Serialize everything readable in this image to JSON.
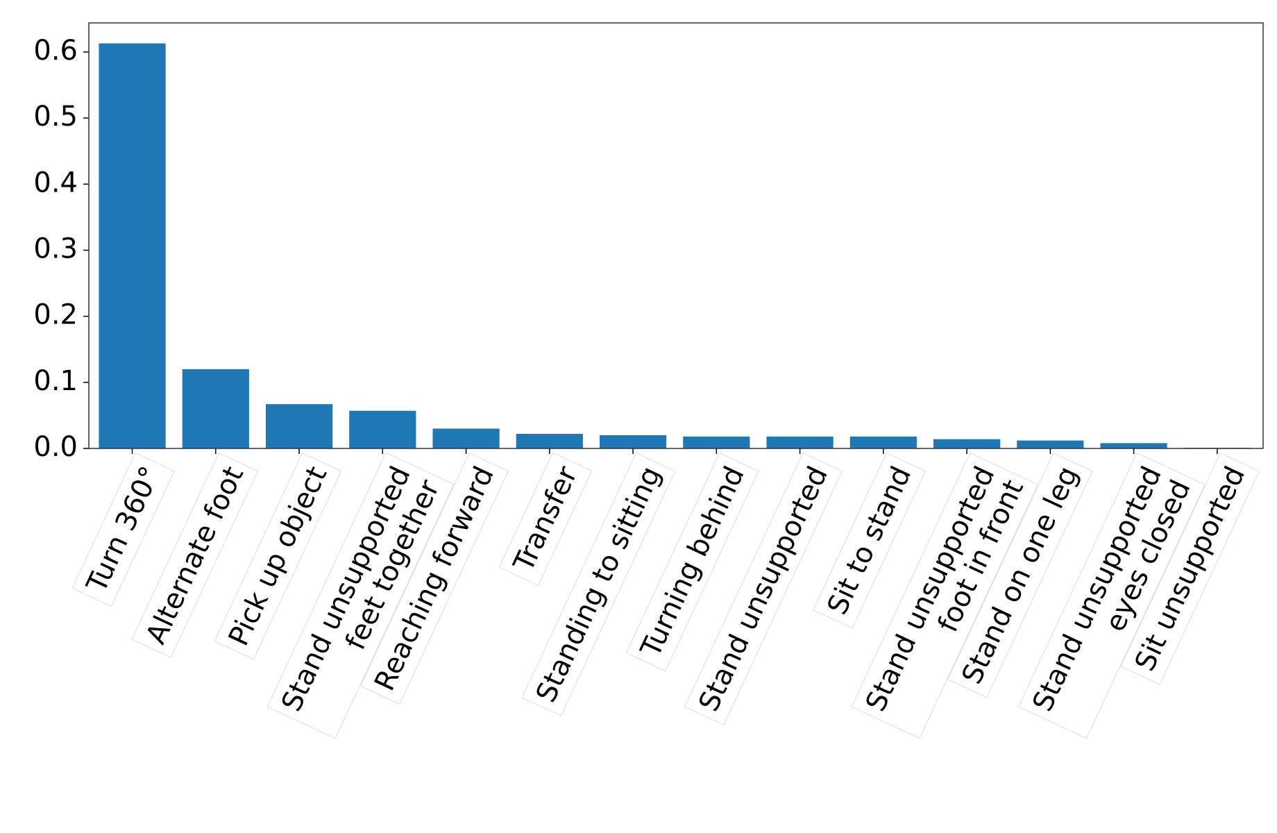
{
  "chart_data": {
    "type": "bar",
    "categories": [
      [
        "Turn 360°"
      ],
      [
        "Alternate foot"
      ],
      [
        "Pick up object"
      ],
      [
        "Stand unsupported",
        "feet together"
      ],
      [
        "Reaching forward"
      ],
      [
        "Transfer"
      ],
      [
        "Standing to sitting"
      ],
      [
        "Turning behind"
      ],
      [
        "Stand unsupported"
      ],
      [
        "Sit to stand"
      ],
      [
        "Stand unsupported",
        "foot in front"
      ],
      [
        "Stand on one leg"
      ],
      [
        "Stand unsupported",
        "eyes closed"
      ],
      [
        "Sit unsupported"
      ]
    ],
    "values": [
      0.613,
      0.12,
      0.067,
      0.057,
      0.03,
      0.022,
      0.02,
      0.018,
      0.018,
      0.018,
      0.014,
      0.012,
      0.008,
      0.001
    ],
    "color": "#1f77b4",
    "ylim": [
      0,
      0.644
    ],
    "yticks": [
      {
        "value": 0,
        "label": "0.0"
      },
      0.1,
      0.2,
      0.3,
      0.4,
      0.5,
      0.6
    ]
  }
}
